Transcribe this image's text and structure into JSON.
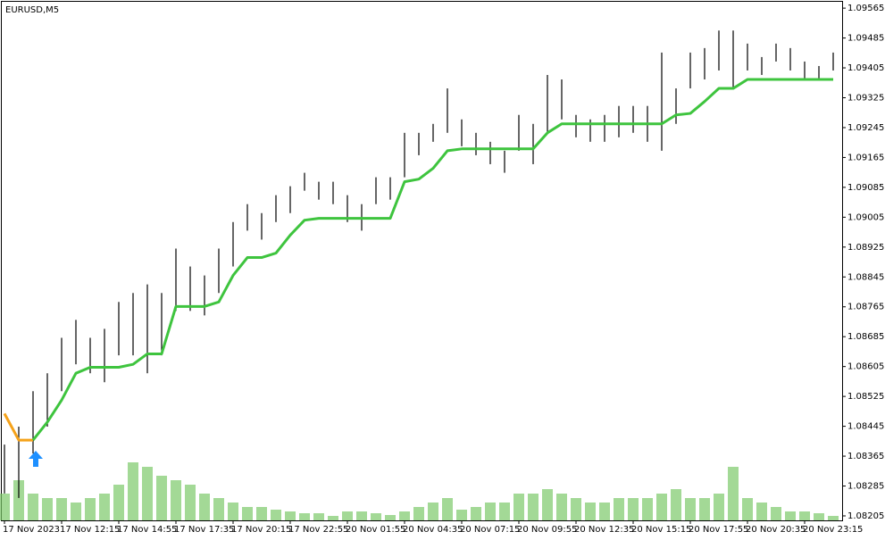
{
  "chart_data": {
    "type": "hilo",
    "title": "EURUSD,M5",
    "bar_color": "#000000",
    "categories": [
      "17 Nov 2023",
      null,
      null,
      null,
      "17 Nov 12:15",
      null,
      null,
      null,
      "17 Nov 14:55",
      null,
      null,
      null,
      "17 Nov 17:35",
      null,
      null,
      null,
      "17 Nov 20:15",
      null,
      null,
      null,
      "17 Nov 22:55",
      null,
      null,
      null,
      "20 Nov 01:55",
      null,
      null,
      null,
      "20 Nov 04:35",
      null,
      null,
      null,
      "20 Nov 07:15",
      null,
      null,
      null,
      "20 Nov 09:55",
      null,
      null,
      null,
      "20 Nov 12:35",
      null,
      null,
      null,
      "20 Nov 15:15",
      null,
      null,
      null,
      "20 Nov 17:55",
      null,
      null,
      null,
      "20 Nov 20:35",
      null,
      null,
      null,
      "20 Nov 23:15",
      null,
      null
    ],
    "high": [
      1.08396,
      1.08444,
      1.08539,
      1.08587,
      1.08682,
      1.0873,
      1.08682,
      1.08706,
      1.08778,
      1.08802,
      1.08825,
      1.08802,
      1.08921,
      1.08873,
      1.08849,
      1.08921,
      1.08992,
      1.0904,
      1.09016,
      1.09064,
      1.09088,
      1.09124,
      1.091,
      1.091,
      1.09064,
      1.0904,
      1.09112,
      1.09112,
      1.09231,
      1.09231,
      1.09255,
      1.0935,
      1.09267,
      1.09231,
      1.09207,
      1.09183,
      1.09279,
      1.09255,
      1.09386,
      1.09374,
      1.09279,
      1.09267,
      1.09279,
      1.09303,
      1.09303,
      1.09303,
      1.09446,
      1.0935,
      1.09446,
      1.09458,
      1.09505,
      1.09505,
      1.0947,
      1.09434,
      1.0947,
      1.09458,
      1.09422,
      1.0941,
      1.09446
    ],
    "low": [
      1.08265,
      1.08253,
      1.08372,
      1.08444,
      1.08539,
      1.08611,
      1.08587,
      1.08563,
      1.08635,
      1.08635,
      1.08587,
      1.08635,
      1.08754,
      1.08754,
      1.08742,
      1.08802,
      1.08873,
      1.08969,
      1.08945,
      1.08992,
      1.09016,
      1.09076,
      1.09052,
      1.0904,
      1.08992,
      1.08969,
      1.0904,
      1.09052,
      1.09112,
      1.09171,
      1.09207,
      1.09231,
      1.09195,
      1.09171,
      1.09147,
      1.09124,
      1.09183,
      1.09147,
      1.09231,
      1.09267,
      1.09219,
      1.09207,
      1.09207,
      1.09219,
      1.09231,
      1.09207,
      1.09183,
      1.09255,
      1.0935,
      1.09374,
      1.09398,
      1.0935,
      1.09398,
      1.09386,
      1.09422,
      1.09398,
      1.09374,
      1.09374,
      1.09398
    ],
    "lines": [
      {
        "color": "#f5a21a",
        "values": [
          1.08479,
          1.08408,
          1.08408,
          null,
          null,
          null,
          null,
          null,
          null,
          null,
          null,
          null,
          null,
          null,
          null,
          null,
          null,
          null,
          null,
          null,
          null,
          null,
          null,
          null,
          null,
          null,
          null,
          null,
          null,
          null,
          null,
          null,
          null,
          null,
          null,
          null,
          null,
          null,
          null,
          null,
          null,
          null,
          null,
          null,
          null,
          null,
          null,
          null,
          null,
          null,
          null,
          null,
          null,
          null,
          null,
          null,
          null,
          null,
          null
        ]
      },
      {
        "color": "#3ec43e",
        "values": [
          null,
          null,
          1.08408,
          1.08456,
          1.08515,
          1.08587,
          1.08603,
          1.08603,
          1.08603,
          1.08611,
          1.08639,
          1.08639,
          1.08766,
          1.08766,
          1.08766,
          1.08778,
          1.08849,
          1.08897,
          1.08897,
          1.08909,
          1.08957,
          1.08997,
          1.09002,
          1.09002,
          1.09002,
          1.09002,
          1.09002,
          1.09002,
          1.091,
          1.09107,
          1.09136,
          1.09183,
          1.09188,
          1.09188,
          1.09188,
          1.09188,
          1.09188,
          1.09188,
          1.09231,
          1.09255,
          1.09255,
          1.09255,
          1.09255,
          1.09255,
          1.09255,
          1.09255,
          1.09255,
          1.09279,
          1.09283,
          1.09315,
          1.0935,
          1.0935,
          1.09374,
          1.09374,
          1.09374,
          1.09374,
          1.09374,
          1.09374,
          1.09374
        ]
      }
    ],
    "volume": {
      "color": "#7cc96a",
      "values": [
        30,
        45,
        30,
        25,
        25,
        20,
        25,
        30,
        40,
        65,
        60,
        50,
        45,
        40,
        30,
        25,
        20,
        15,
        15,
        12,
        10,
        8,
        8,
        5,
        10,
        10,
        8,
        6,
        10,
        15,
        20,
        25,
        12,
        15,
        20,
        20,
        30,
        30,
        35,
        30,
        25,
        20,
        20,
        25,
        25,
        25,
        30,
        35,
        25,
        25,
        30,
        60,
        25,
        20,
        15,
        10,
        10,
        8,
        5
      ]
    },
    "vlim": [
      0,
      100
    ],
    "ylim": [
      1.08193,
      1.09582
    ],
    "yticks": [
      1.08205,
      1.08285,
      1.08365,
      1.08445,
      1.08525,
      1.08605,
      1.08685,
      1.08765,
      1.08845,
      1.08925,
      1.09005,
      1.09085,
      1.09165,
      1.09245,
      1.09325,
      1.09405,
      1.09485,
      1.09565
    ]
  }
}
